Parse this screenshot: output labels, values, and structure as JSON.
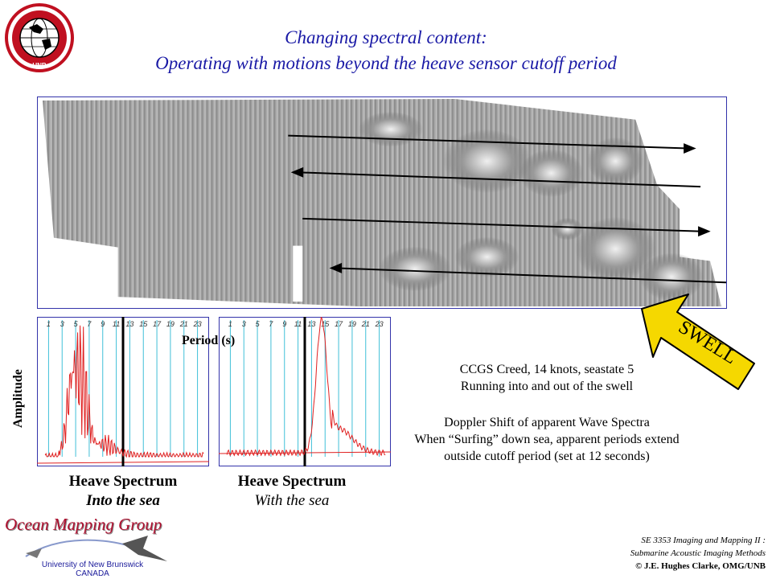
{
  "title": {
    "line1": "Changing spectral content:",
    "line2": "Operating with motions beyond the heave sensor cutoff period"
  },
  "logo": {
    "text_top": "GEODESY AND GEOMATICS ENGINEERING",
    "text_bottom": "UNB"
  },
  "swell_label": "SWELL",
  "period_label": "Period (s)",
  "amplitude_label": "Amplitude",
  "period_ticks": [
    "1",
    "3",
    "5",
    "7",
    "9",
    "11",
    "13",
    "15",
    "17",
    "19",
    "21",
    "23"
  ],
  "cutoff_period": 12,
  "spectrum_left": {
    "caption_main": "Heave Spectrum",
    "caption_sub": "Into the sea",
    "peak_periods": [
      4.5,
      6
    ]
  },
  "spectrum_right": {
    "caption_main": "Heave Spectrum",
    "caption_sub": "With the sea",
    "peak_period": 14.5
  },
  "description": {
    "line1": "CCGS Creed, 14 knots, seastate 5",
    "line2": "Running into and out of the swell",
    "line3": "Doppler Shift of apparent Wave Spectra",
    "line4": "When “Surfing” down sea, apparent periods extend",
    "line5": "outside cutoff period (set at 12 seconds)"
  },
  "footer": {
    "group": "Ocean Mapping Group",
    "university": "University of New Brunswick",
    "country": "CANADA",
    "course_line1": "SE 3353 Imaging and Mapping II :",
    "course_line2": "Submarine Acoustic Imaging Methods",
    "copyright": "© J.E. Hughes Clarke, OMG/UNB"
  },
  "colors": {
    "title": "#1a1aa6",
    "spectrum_line": "#e02020",
    "gridline": "#40c0d8",
    "swell_arrow": "#f5d800",
    "omg_red": "#b01030"
  }
}
